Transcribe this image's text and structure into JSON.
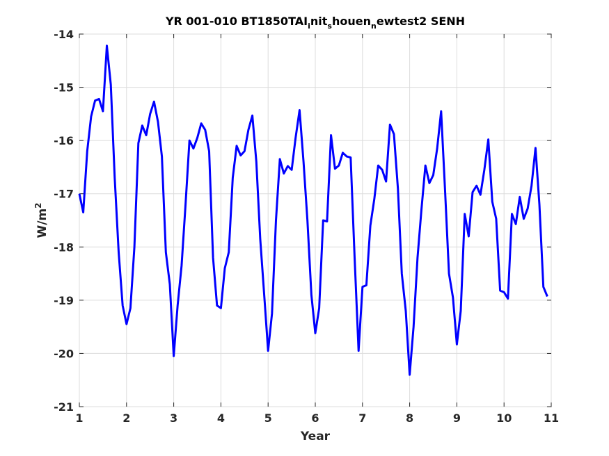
{
  "chart_data": {
    "type": "line",
    "title": "YR 001-010 BT1850TAI",
    "title_parts": {
      "prefix": "YR 001-010 BT1850TAI",
      "sub1": "i",
      "mid1": "nit",
      "sub2": "s",
      "mid2": "houen",
      "sub3": "n",
      "suffix": "ewtest2 SENH"
    },
    "xlabel": "Year",
    "ylabel_base": "W/m",
    "ylabel_sup": "2",
    "xlim": [
      1,
      11
    ],
    "ylim": [
      -21,
      -14
    ],
    "xticks": [
      1,
      2,
      3,
      4,
      5,
      6,
      7,
      8,
      9,
      10,
      11
    ],
    "yticks": [
      -21,
      -20,
      -19,
      -18,
      -17,
      -16,
      -15,
      -14
    ],
    "grid": true,
    "series": [
      {
        "color": "#0000ff",
        "x": [
          1.0,
          1.083,
          1.167,
          1.25,
          1.333,
          1.417,
          1.5,
          1.583,
          1.667,
          1.75,
          1.833,
          1.917,
          2.0,
          2.083,
          2.167,
          2.25,
          2.333,
          2.417,
          2.5,
          2.583,
          2.667,
          2.75,
          2.833,
          2.917,
          3.0,
          3.083,
          3.167,
          3.25,
          3.333,
          3.417,
          3.5,
          3.583,
          3.667,
          3.75,
          3.833,
          3.917,
          4.0,
          4.083,
          4.167,
          4.25,
          4.333,
          4.417,
          4.5,
          4.583,
          4.667,
          4.75,
          4.833,
          4.917,
          5.0,
          5.083,
          5.167,
          5.25,
          5.333,
          5.417,
          5.5,
          5.583,
          5.667,
          5.75,
          5.833,
          5.917,
          6.0,
          6.083,
          6.167,
          6.25,
          6.333,
          6.417,
          6.5,
          6.583,
          6.667,
          6.75,
          6.833,
          6.917,
          7.0,
          7.083,
          7.167,
          7.25,
          7.333,
          7.417,
          7.5,
          7.583,
          7.667,
          7.75,
          7.833,
          7.917,
          8.0,
          8.083,
          8.167,
          8.25,
          8.333,
          8.417,
          8.5,
          8.583,
          8.667,
          8.75,
          8.833,
          8.917,
          9.0,
          9.083,
          9.167,
          9.25,
          9.333,
          9.417,
          9.5,
          9.583,
          9.667,
          9.75,
          9.833,
          9.917,
          10.0,
          10.083,
          10.167,
          10.25,
          10.333,
          10.417,
          10.5,
          10.583,
          10.667,
          10.75,
          10.833,
          10.917
        ],
        "y": [
          -17.0,
          -17.35,
          -16.2,
          -15.55,
          -15.25,
          -15.22,
          -15.45,
          -14.22,
          -14.95,
          -16.7,
          -18.1,
          -19.1,
          -19.45,
          -19.15,
          -18.0,
          -16.05,
          -15.72,
          -15.9,
          -15.5,
          -15.27,
          -15.65,
          -16.3,
          -18.1,
          -18.7,
          -20.05,
          -19.1,
          -18.35,
          -17.2,
          -16.0,
          -16.15,
          -15.95,
          -15.68,
          -15.8,
          -16.2,
          -18.2,
          -19.1,
          -19.15,
          -18.4,
          -18.1,
          -16.7,
          -16.1,
          -16.28,
          -16.2,
          -15.8,
          -15.53,
          -16.4,
          -17.85,
          -18.9,
          -19.95,
          -19.25,
          -17.5,
          -16.35,
          -16.62,
          -16.48,
          -16.55,
          -15.95,
          -15.43,
          -16.4,
          -17.5,
          -18.9,
          -19.62,
          -19.15,
          -17.5,
          -17.52,
          -15.9,
          -16.53,
          -16.47,
          -16.23,
          -16.3,
          -16.32,
          -18.2,
          -19.95,
          -18.75,
          -18.72,
          -17.6,
          -17.1,
          -16.47,
          -16.55,
          -16.77,
          -15.7,
          -15.88,
          -16.9,
          -18.5,
          -19.2,
          -20.4,
          -19.5,
          -18.2,
          -17.3,
          -16.47,
          -16.8,
          -16.65,
          -16.15,
          -15.45,
          -16.95,
          -18.5,
          -18.95,
          -19.83,
          -19.2,
          -17.38,
          -17.8,
          -16.97,
          -16.85,
          -17.02,
          -16.55,
          -15.98,
          -17.15,
          -17.47,
          -18.82,
          -18.85,
          -18.97,
          -17.38,
          -17.57,
          -17.06,
          -17.47,
          -17.28,
          -16.85,
          -16.14,
          -17.2,
          -18.75,
          -18.93
        ]
      }
    ]
  }
}
